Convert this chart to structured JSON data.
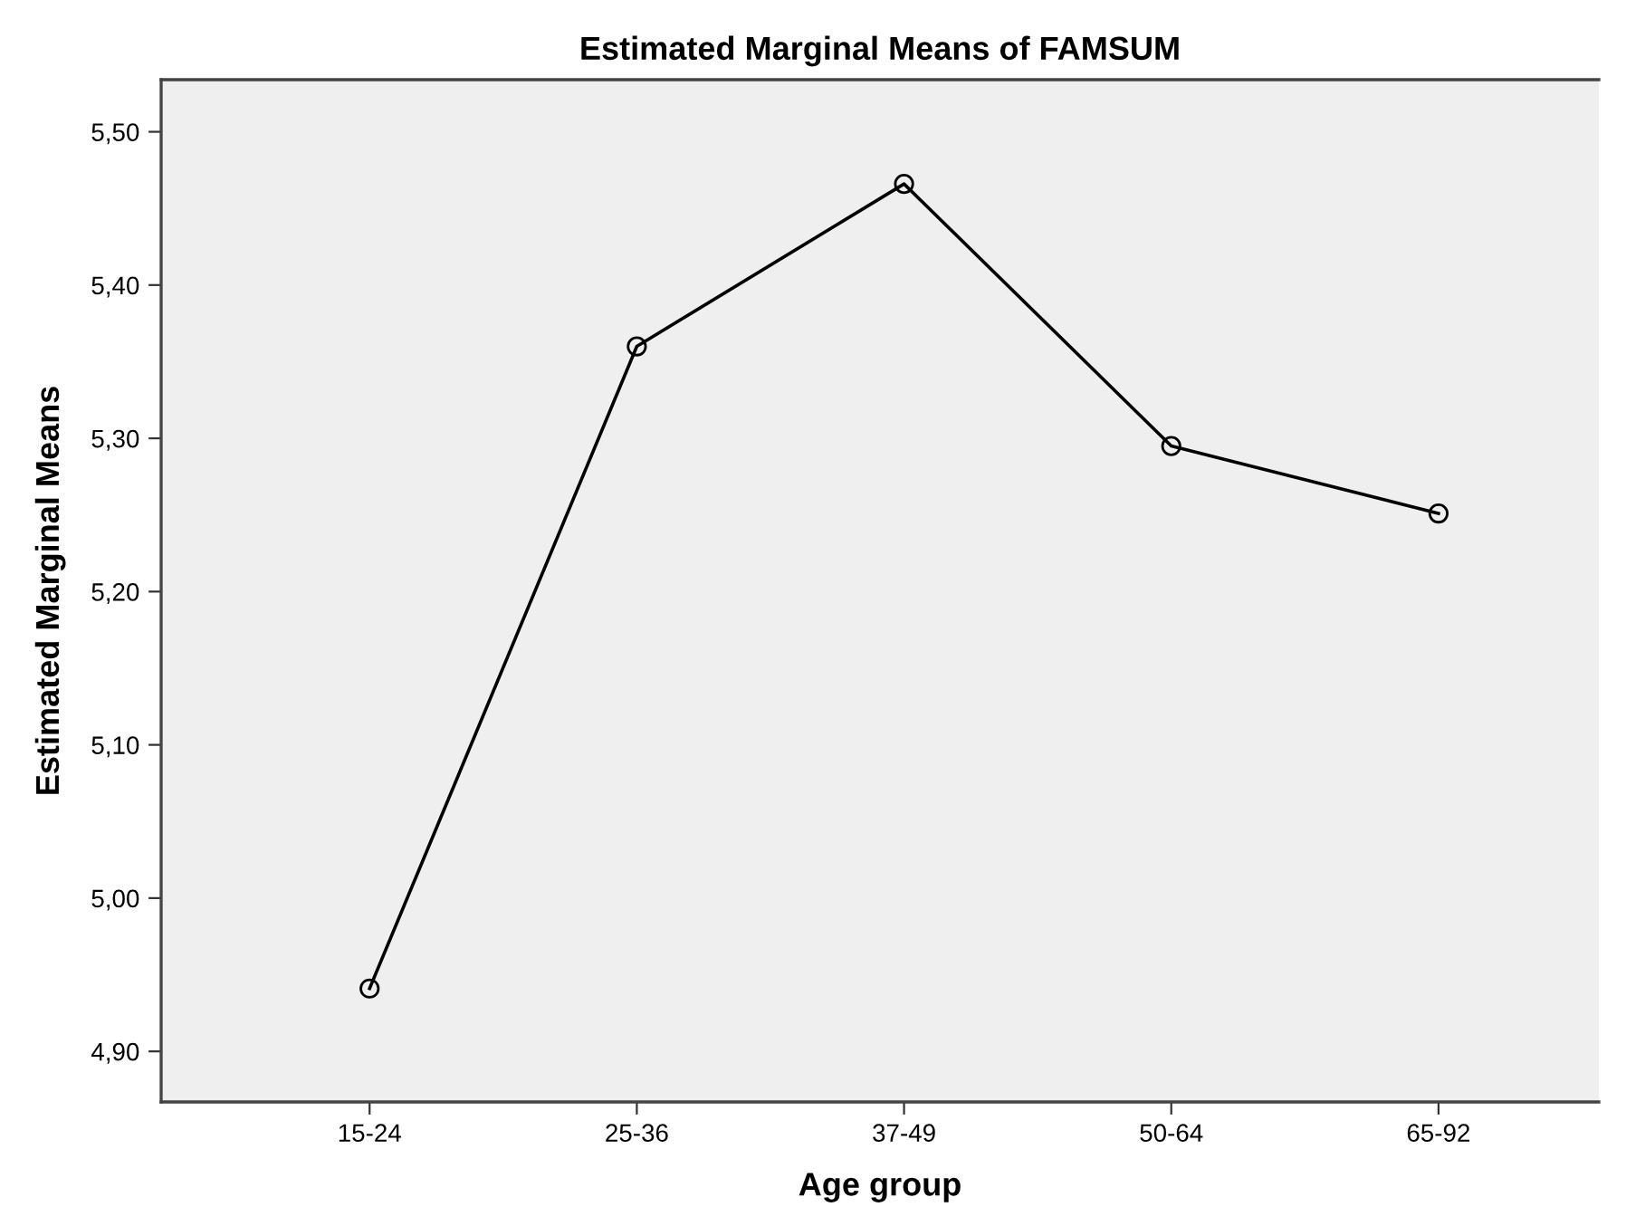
{
  "chart_data": {
    "type": "line",
    "title": "Estimated Marginal Means of FAMSUM",
    "xlabel": "Age group",
    "ylabel": "Estimated Marginal Means",
    "categories": [
      "15-24",
      "25-36",
      "37-49",
      "50-64",
      "65-92"
    ],
    "series": [
      {
        "color": "#000000",
        "values": [
          4.941,
          5.36,
          5.466,
          5.295,
          5.251
        ]
      }
    ],
    "marker": "circle",
    "line_style": "solid",
    "grid": false,
    "legend": false,
    "ylim": [
      4.867,
      5.534
    ],
    "yticks": [
      {
        "value": 4.9,
        "label": "4,90"
      },
      {
        "value": 5.0,
        "label": "5,00"
      },
      {
        "value": 5.1,
        "label": "5,10"
      },
      {
        "value": 5.2,
        "label": "5,20"
      },
      {
        "value": 5.3,
        "label": "5,30"
      },
      {
        "value": 5.4,
        "label": "5,40"
      },
      {
        "value": 5.5,
        "label": "5,50"
      }
    ]
  }
}
